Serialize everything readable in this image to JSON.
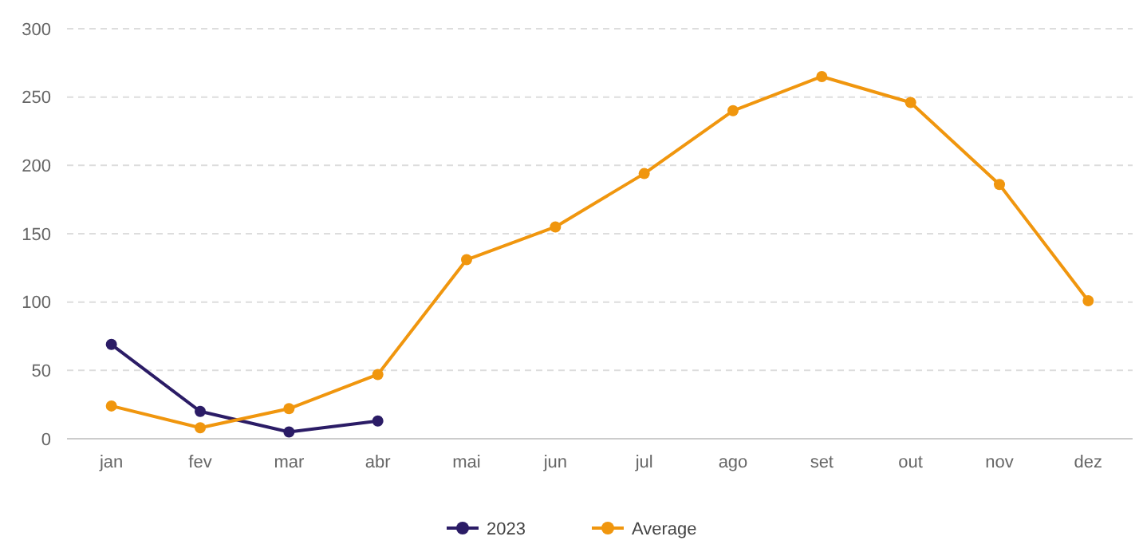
{
  "chart_data": {
    "type": "line",
    "categories": [
      "jan",
      "fev",
      "mar",
      "abr",
      "mai",
      "jun",
      "jul",
      "ago",
      "set",
      "out",
      "nov",
      "dez"
    ],
    "series": [
      {
        "name": "2023",
        "color": "#2b1c66",
        "values": [
          69,
          20,
          5,
          13,
          null,
          null,
          null,
          null,
          null,
          null,
          null,
          null
        ]
      },
      {
        "name": "Average",
        "color": "#f0960e",
        "values": [
          24,
          8,
          22,
          47,
          131,
          155,
          194,
          240,
          265,
          246,
          186,
          101
        ]
      }
    ],
    "ylim": [
      0,
      300
    ],
    "yticks": [
      0,
      50,
      100,
      150,
      200,
      250,
      300
    ],
    "grid": "y",
    "legend": "bottom",
    "marker": "circle",
    "line_style": "solid"
  }
}
